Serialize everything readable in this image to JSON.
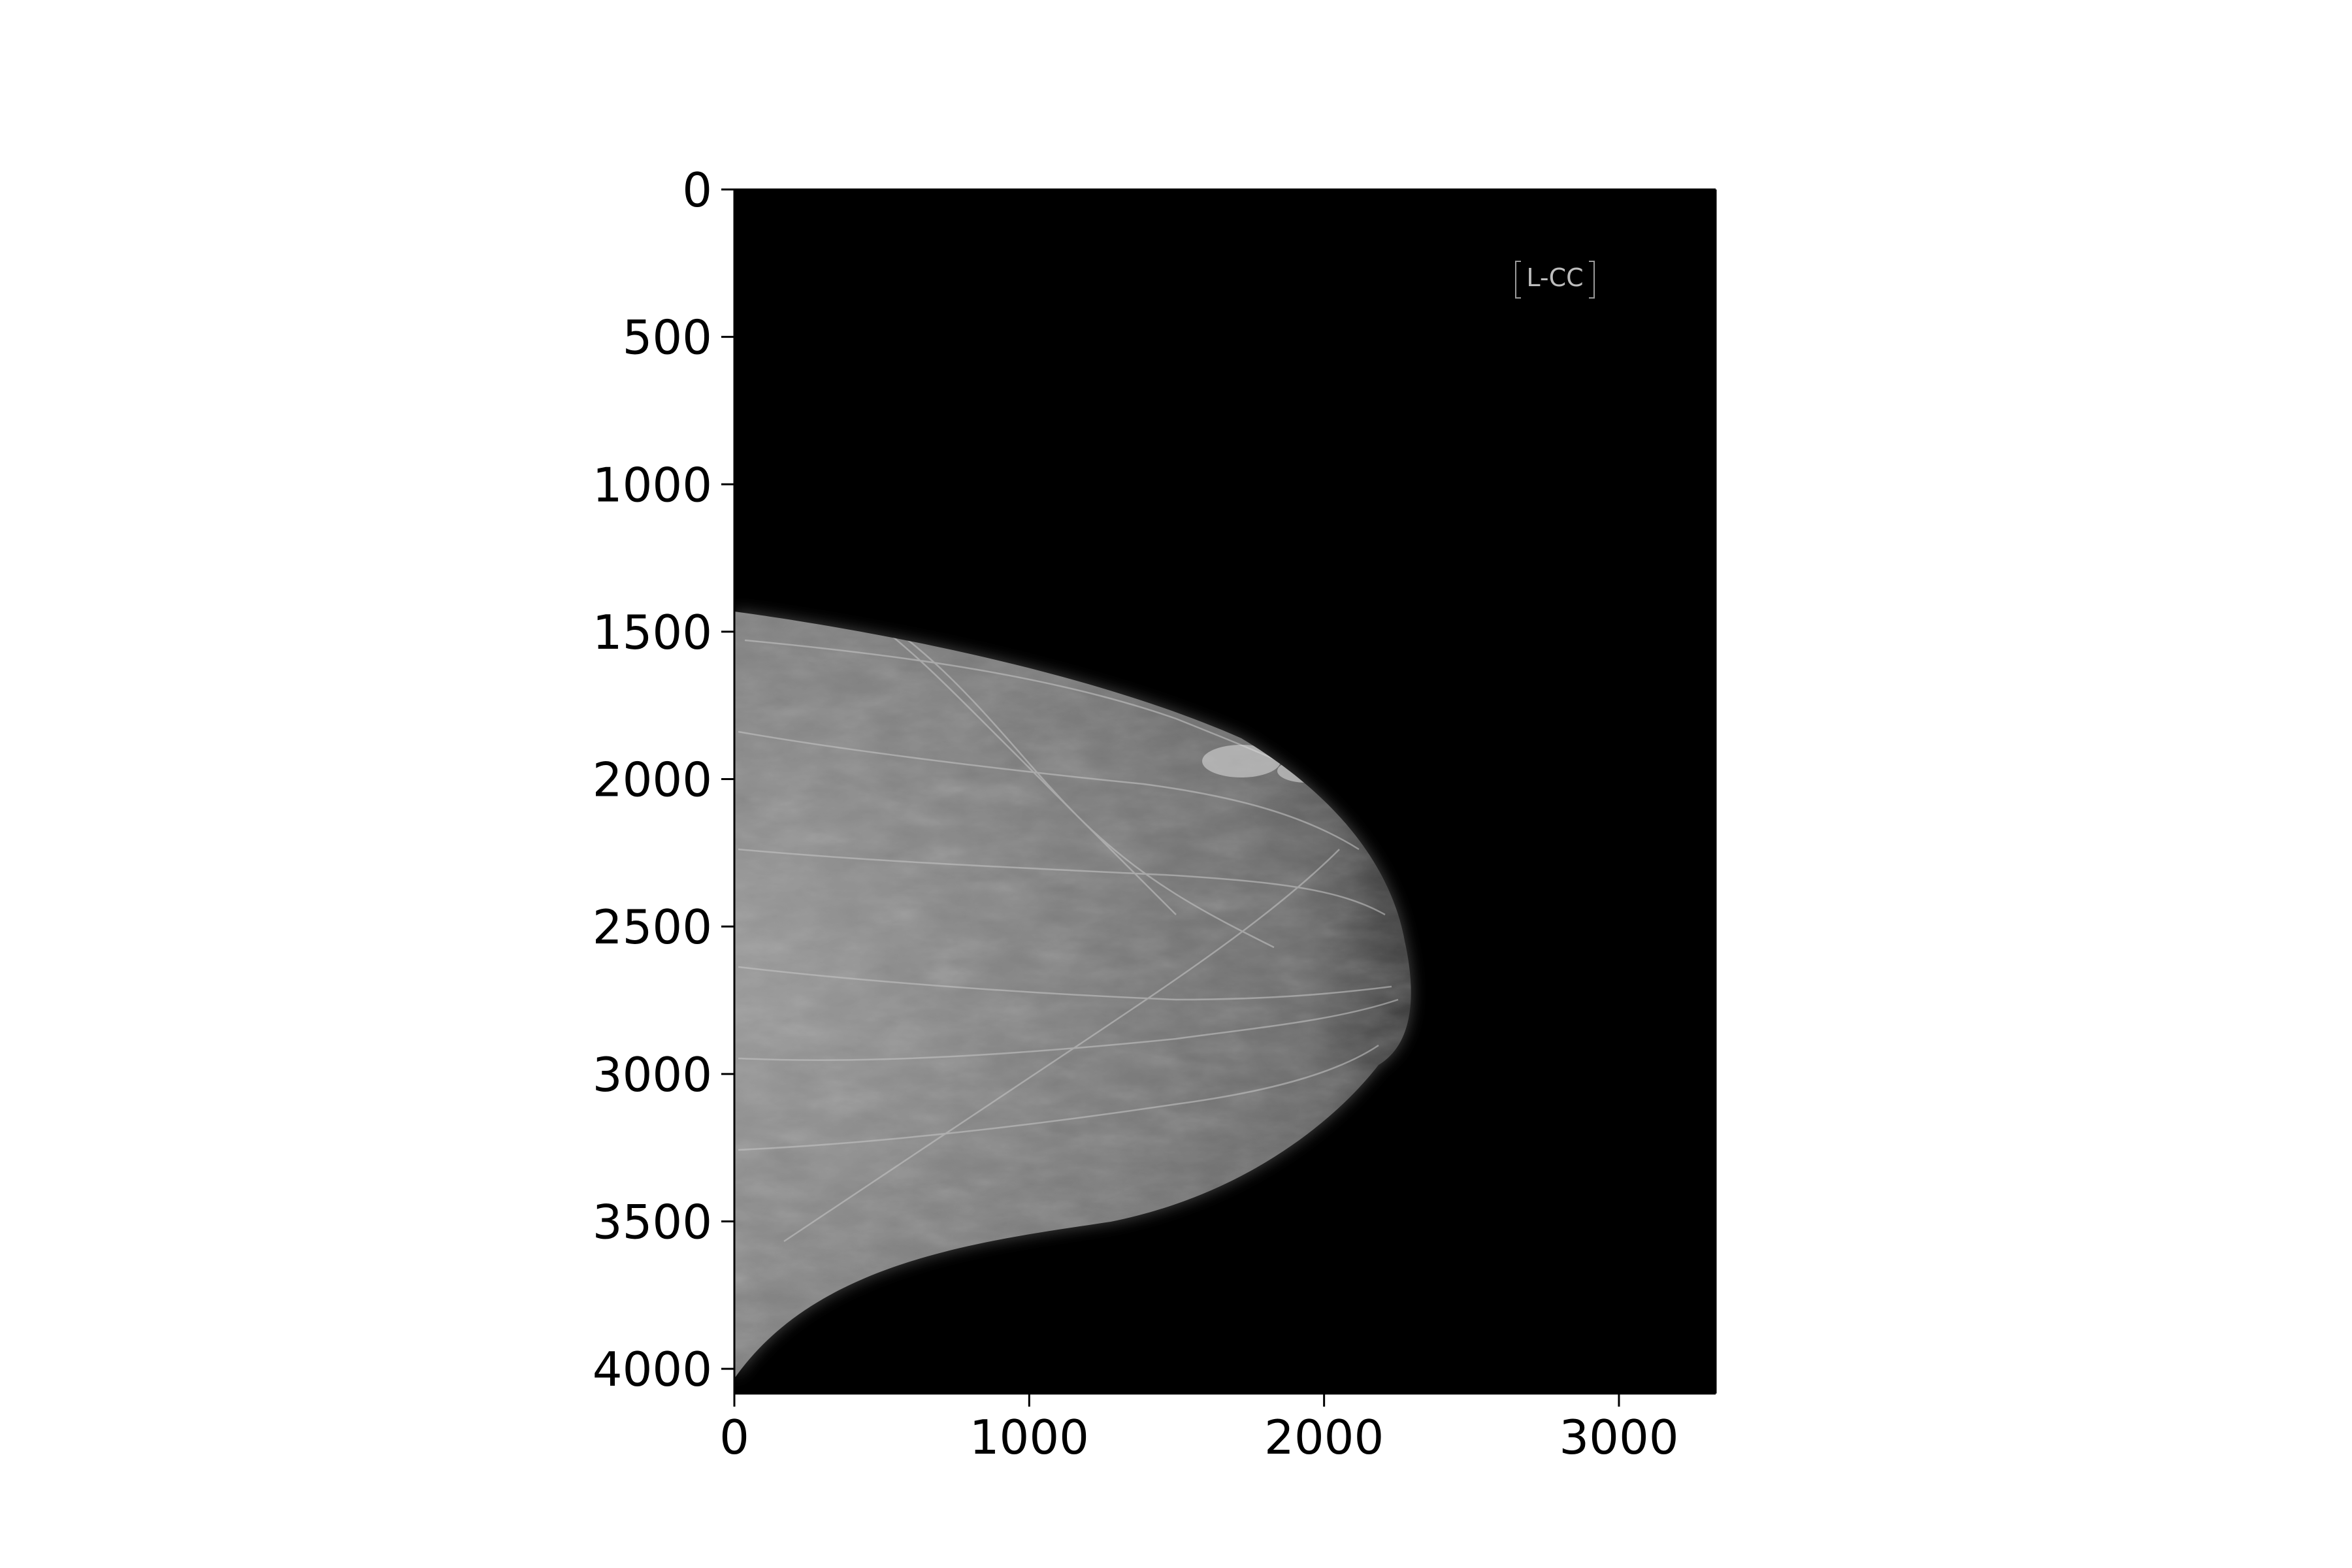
{
  "image": {
    "description_label": "L-CC",
    "background_color": "#000000",
    "tissue_color": "#8a8a8a"
  },
  "axes": {
    "x_ticks": [
      "0",
      "1000",
      "2000",
      "3000"
    ],
    "y_ticks": [
      "0",
      "500",
      "1000",
      "1500",
      "2000",
      "2500",
      "3000",
      "3500",
      "4000"
    ],
    "x_range": [
      0,
      3328
    ],
    "y_range": [
      4084,
      0
    ]
  }
}
